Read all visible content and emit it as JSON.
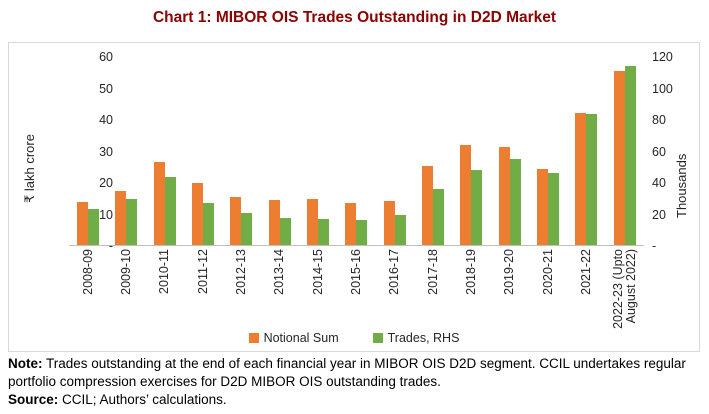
{
  "title": "Chart 1: MIBOR OIS Trades Outstanding in D2D Market",
  "colors": {
    "title_text": "#8B0000",
    "notional": "#ED7D31",
    "trades": "#70AD47",
    "axis_line": "#bfbfbf",
    "frame_border": "#d9d9d9"
  },
  "chart_data": {
    "type": "bar",
    "categories": [
      "2008-09",
      "2009-10",
      "2010-11",
      "2011-12",
      "2012-13",
      "2013-14",
      "2014-15",
      "2015-16",
      "2016-17",
      "2017-18",
      "2018-19",
      "2019-20",
      "2020-21",
      "2021-22",
      "2022-23 (Upto\nAugust 2022)"
    ],
    "series": [
      {
        "name": "Notional Sum",
        "axis": "left",
        "color": "#ED7D31",
        "values": [
          13.7,
          17.3,
          26.4,
          19.6,
          15.3,
          14.3,
          14.7,
          13.3,
          14.0,
          25.1,
          31.8,
          31.2,
          24.1,
          41.9,
          55.4
        ]
      },
      {
        "name": "Trades, RHS",
        "axis": "right",
        "color": "#70AD47",
        "values": [
          23,
          29,
          43,
          27,
          20.5,
          17.3,
          16.7,
          16,
          19,
          35.5,
          47.5,
          54.5,
          45.5,
          83,
          114
        ]
      }
    ],
    "left_axis": {
      "label": "₹ lakh crore",
      "min": 0,
      "max": 60,
      "tick_labels": [
        "60",
        "50",
        "40",
        "30",
        "20",
        "10",
        "-"
      ]
    },
    "right_axis": {
      "label": "Thousands",
      "min": 0,
      "max": 120,
      "tick_labels": [
        "120",
        "100",
        "80",
        "60",
        "40",
        "20",
        "-"
      ]
    },
    "legend_position": "bottom",
    "grid": false
  },
  "legend": {
    "items": [
      {
        "label": "Notional Sum"
      },
      {
        "label": "Trades, RHS"
      }
    ]
  },
  "note": {
    "label": "Note:",
    "text": " Trades outstanding at the end of each financial year in MIBOR OIS D2D segment. CCIL undertakes regular portfolio compression exercises for D2D MIBOR OIS outstanding trades."
  },
  "source": {
    "label": "Source:",
    "text": " CCIL; Authors’ calculations."
  }
}
